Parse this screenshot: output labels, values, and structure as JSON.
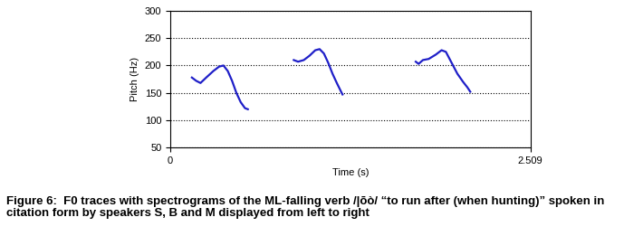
{
  "chart_data": {
    "type": "line",
    "title": "Figure 6:  F0 traces with spectrograms of the ML-falling verb /|ōò/ “to run after (when hunting)” spoken in citation form by speakers S, B and M displayed from left to right",
    "x_label": "Time (s)",
    "y_label": "Pitch (Hz)",
    "xlim": [
      0,
      2.509
    ],
    "xticks": [
      0,
      2.509
    ],
    "ylim": [
      50,
      300
    ],
    "yticks": [
      50,
      100,
      150,
      200,
      250,
      300
    ],
    "grid": true,
    "series": [
      {
        "color": "#1f1fc8",
        "x": [
          0.15,
          0.18,
          0.21,
          0.25,
          0.3,
          0.34,
          0.37,
          0.4,
          0.43,
          0.46,
          0.49,
          0.52,
          0.54
        ],
        "values": [
          178,
          172,
          168,
          178,
          190,
          198,
          200,
          190,
          172,
          150,
          133,
          122,
          120
        ]
      },
      {
        "color": "#1f1fc8",
        "x": [
          0.86,
          0.89,
          0.93,
          0.97,
          1.01,
          1.04,
          1.07,
          1.1,
          1.13,
          1.16,
          1.19,
          1.2
        ],
        "values": [
          210,
          207,
          210,
          218,
          228,
          230,
          222,
          205,
          185,
          168,
          152,
          147
        ]
      },
      {
        "color": "#1f1fc8",
        "x": [
          1.71,
          1.73,
          1.76,
          1.8,
          1.85,
          1.89,
          1.92,
          1.96,
          2.0,
          2.04,
          2.07,
          2.09
        ],
        "values": [
          207,
          203,
          210,
          212,
          220,
          228,
          225,
          205,
          185,
          170,
          160,
          152
        ]
      }
    ]
  }
}
